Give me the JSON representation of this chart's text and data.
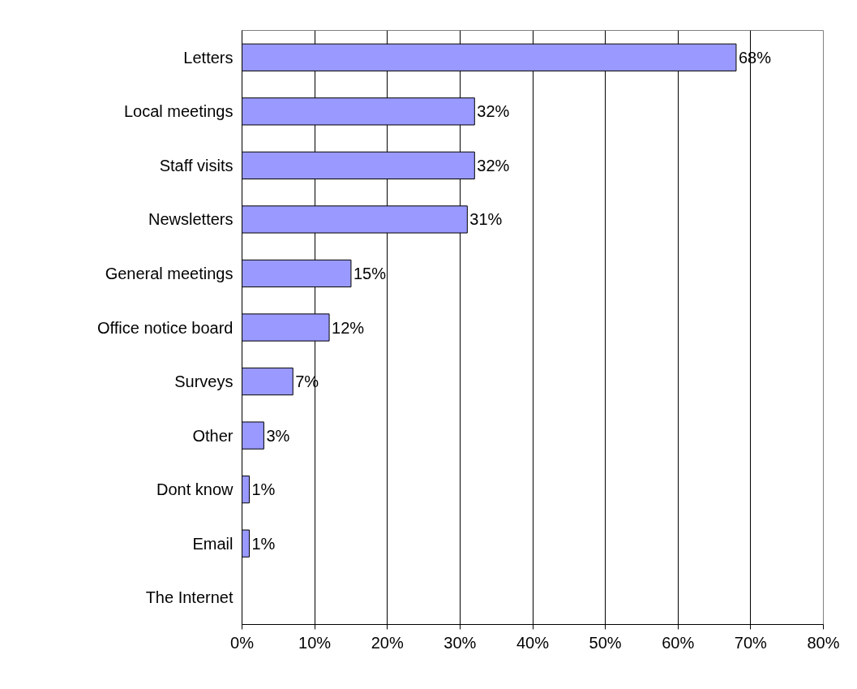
{
  "chart_data": {
    "type": "bar",
    "orientation": "horizontal",
    "categories": [
      "Letters",
      "Local meetings",
      "Staff visits",
      "Newsletters",
      "General meetings",
      "Office notice board",
      "Surveys",
      "Other",
      "Dont know",
      "Email",
      "The Internet"
    ],
    "values": [
      68,
      32,
      32,
      31,
      15,
      12,
      7,
      3,
      1,
      1,
      null
    ],
    "value_labels": [
      "68%",
      "32%",
      "32%",
      "31%",
      "15%",
      "12%",
      "7%",
      "3%",
      "1%",
      "1%",
      null
    ],
    "color": "#9999ff",
    "xlim": [
      0,
      80
    ],
    "xticks": [
      {
        "value": 0,
        "label": "0%"
      },
      {
        "value": 10,
        "label": "10%"
      },
      {
        "value": 20,
        "label": "20%"
      },
      {
        "value": 30,
        "label": "30%"
      },
      {
        "value": 40,
        "label": "40%"
      },
      {
        "value": 50,
        "label": "50%"
      },
      {
        "value": 60,
        "label": "60%"
      },
      {
        "value": 70,
        "label": "70%"
      },
      {
        "value": 80,
        "label": "80%"
      }
    ],
    "grid": "x"
  }
}
